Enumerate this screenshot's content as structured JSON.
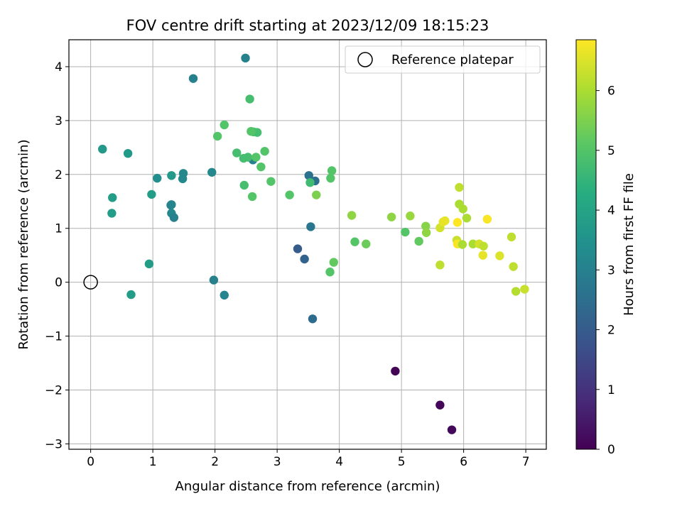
{
  "chart_data": {
    "type": "scatter",
    "title": "FOV centre drift starting at 2023/12/09 18:15:23",
    "xlabel": "Angular distance from reference (arcmin)",
    "ylabel": "Rotation from reference (arcmin)",
    "xlim": [
      -0.35,
      7.33
    ],
    "ylim": [
      -3.1,
      4.5
    ],
    "xticks": [
      0,
      1,
      2,
      3,
      4,
      5,
      6,
      7
    ],
    "yticks": [
      -3,
      -2,
      -1,
      0,
      1,
      2,
      3,
      4
    ],
    "grid": true,
    "legend": {
      "placement": "upper right",
      "entries": [
        {
          "label": "Reference platepar",
          "marker": "open-circle"
        }
      ]
    },
    "reference_point": {
      "x": 0,
      "y": 0
    },
    "colorbar": {
      "label": "Hours from first FF file",
      "colormap": "viridis",
      "range": [
        0,
        6.85
      ],
      "ticks": [
        0,
        1,
        2,
        3,
        4,
        5,
        6
      ]
    },
    "series": [
      {
        "x": [
          4.9,
          5.62,
          5.81,
          3.33,
          3.44,
          3.57,
          3.54,
          3.61,
          3.51,
          1.98,
          2.15,
          2.49,
          2.61,
          1.65,
          1.3,
          1.29,
          1.34,
          1.3,
          1.48,
          1.49,
          1.95,
          0.19,
          0.6,
          1.07,
          1.3,
          0.98,
          0.35,
          0.34,
          0.94,
          0.65,
          2.56,
          2.35,
          2.46,
          2.53,
          2.62,
          2.68,
          2.47,
          2.6,
          2.58,
          2.66,
          2.74,
          2.8,
          2.15,
          2.04,
          2.9,
          3.2,
          3.53,
          3.63,
          3.86,
          3.88,
          3.85,
          3.91,
          4.2,
          4.25,
          4.43,
          4.84,
          5.06,
          5.14,
          5.28,
          5.39,
          5.4,
          5.62,
          5.67,
          5.7,
          5.89,
          5.93,
          5.99,
          6.05,
          5.9,
          5.98,
          6.15,
          6.25,
          6.31,
          6.32,
          5.62,
          6.58,
          6.77,
          6.8,
          6.84,
          6.98,
          5.9,
          5.93,
          6.38
        ],
        "y": [
          -1.65,
          -2.28,
          -2.74,
          0.62,
          0.43,
          -0.68,
          1.03,
          1.88,
          1.98,
          0.04,
          -0.24,
          4.16,
          2.27,
          3.78,
          1.28,
          1.43,
          1.2,
          1.98,
          1.92,
          2.02,
          2.04,
          2.47,
          2.39,
          1.93,
          1.44,
          1.63,
          1.57,
          1.28,
          0.34,
          -0.23,
          3.4,
          2.4,
          2.3,
          2.32,
          2.79,
          2.78,
          1.8,
          1.59,
          2.8,
          2.32,
          2.14,
          2.43,
          2.92,
          2.71,
          1.87,
          1.62,
          1.85,
          1.62,
          1.93,
          2.07,
          0.19,
          0.37,
          1.24,
          0.75,
          0.71,
          1.21,
          0.93,
          1.23,
          0.76,
          1.04,
          0.92,
          1.01,
          1.12,
          1.14,
          0.78,
          1.45,
          1.36,
          1.19,
          0.71,
          0.7,
          0.71,
          0.71,
          0.5,
          0.67,
          0.32,
          0.49,
          0.84,
          0.29,
          -0.17,
          -0.13,
          1.11,
          1.76,
          1.17
        ],
        "c": [
          0.05,
          0.1,
          0.15,
          2.0,
          2.2,
          2.4,
          2.7,
          2.5,
          2.6,
          3.0,
          3.1,
          3.0,
          3.0,
          3.0,
          3.2,
          3.1,
          3.0,
          3.7,
          3.2,
          3.2,
          3.2,
          3.7,
          3.7,
          3.4,
          3.1,
          3.8,
          3.8,
          3.8,
          3.8,
          3.8,
          4.8,
          4.8,
          4.8,
          4.8,
          4.8,
          4.8,
          4.8,
          5.0,
          5.0,
          5.0,
          5.0,
          5.0,
          5.0,
          5.0,
          5.0,
          5.0,
          4.7,
          5.5,
          5.0,
          5.0,
          5.0,
          5.2,
          5.7,
          5.0,
          5.3,
          5.7,
          5.0,
          5.8,
          5.2,
          5.6,
          5.7,
          6.4,
          6.6,
          6.6,
          6.3,
          6.0,
          6.0,
          6.0,
          6.8,
          6.0,
          6.0,
          6.4,
          6.6,
          6.2,
          6.2,
          6.5,
          6.2,
          6.2,
          6.1,
          6.3,
          6.9,
          6.2,
          6.8
        ]
      }
    ]
  }
}
